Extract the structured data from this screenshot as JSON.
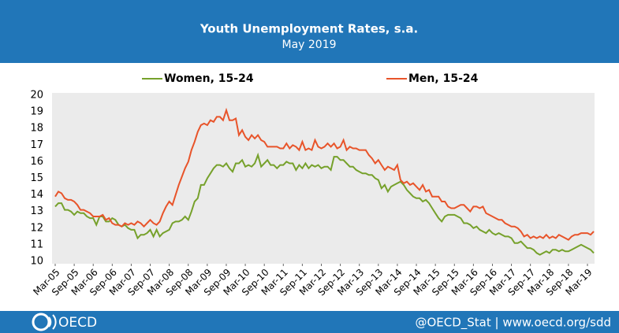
{
  "chart_data": {
    "type": "line",
    "title": "Youth Unemployment Rates, s.a.",
    "subtitle": "May 2019",
    "footer_logo": "OECD",
    "footer_text": "@OECD_Stat | www.oecd.org/sdd",
    "categories": [
      "Mar-05",
      null,
      null,
      null,
      null,
      null,
      "Sep-05",
      null,
      null,
      null,
      null,
      null,
      "Mar-06",
      null,
      null,
      null,
      null,
      null,
      "Sep-06",
      null,
      null,
      null,
      null,
      null,
      "Mar-07",
      null,
      null,
      null,
      null,
      null,
      "Sep-07",
      null,
      null,
      null,
      null,
      null,
      "Mar-08",
      null,
      null,
      null,
      null,
      null,
      "Sep-08",
      null,
      null,
      null,
      null,
      null,
      "Mar-09",
      null,
      null,
      null,
      null,
      null,
      "Sep-09",
      null,
      null,
      null,
      null,
      null,
      "Mar-10",
      null,
      null,
      null,
      null,
      null,
      "Sep-10",
      null,
      null,
      null,
      null,
      null,
      "Mar-11",
      null,
      null,
      null,
      null,
      null,
      "Sep-11",
      null,
      null,
      null,
      null,
      null,
      "Mar-12",
      null,
      null,
      null,
      null,
      null,
      "Sep-12",
      null,
      null,
      null,
      null,
      null,
      "Mar-13",
      null,
      null,
      null,
      null,
      null,
      "Sep-13",
      null,
      null,
      null,
      null,
      null,
      "Mar-14",
      null,
      null,
      null,
      null,
      null,
      "Sep-14",
      null,
      null,
      null,
      null,
      null,
      "Mar-15",
      null,
      null,
      null,
      null,
      null,
      "Sep-15",
      null,
      null,
      null,
      null,
      null,
      "Mar-16",
      null,
      null,
      null,
      null,
      null,
      "Sep-16",
      null,
      null,
      null,
      null,
      null,
      "Mar-17",
      null,
      null,
      null,
      null,
      null,
      "Sep-17",
      null,
      null,
      null,
      null,
      null,
      "Mar-18",
      null,
      null,
      null,
      null,
      null,
      "Sep-18",
      null,
      null,
      null,
      null,
      null,
      "Mar-19",
      null,
      null
    ],
    "series": [
      {
        "name": "Women, 15-24",
        "color": "#76a12b",
        "values": [
          13.3,
          13.5,
          13.5,
          13.1,
          13.1,
          13.0,
          12.8,
          13.0,
          12.9,
          12.9,
          12.7,
          12.6,
          12.6,
          12.2,
          12.7,
          12.7,
          12.4,
          12.4,
          12.6,
          12.5,
          12.2,
          12.1,
          12.2,
          12.0,
          11.9,
          11.9,
          11.4,
          11.6,
          11.6,
          11.7,
          11.9,
          11.5,
          11.9,
          11.5,
          11.7,
          11.8,
          11.9,
          12.3,
          12.4,
          12.4,
          12.5,
          12.7,
          12.5,
          13.0,
          13.6,
          13.8,
          14.6,
          14.6,
          15.0,
          15.3,
          15.6,
          15.8,
          15.8,
          15.7,
          15.9,
          15.6,
          15.4,
          15.9,
          15.9,
          16.1,
          15.7,
          15.8,
          15.7,
          15.9,
          16.4,
          15.7,
          15.9,
          16.1,
          15.8,
          15.8,
          15.6,
          15.8,
          15.8,
          16.0,
          15.9,
          15.9,
          15.5,
          15.8,
          15.6,
          15.9,
          15.6,
          15.8,
          15.7,
          15.8,
          15.6,
          15.7,
          15.7,
          15.5,
          16.3,
          16.3,
          16.1,
          16.1,
          15.9,
          15.7,
          15.7,
          15.5,
          15.4,
          15.3,
          15.3,
          15.2,
          15.2,
          15.0,
          14.9,
          14.4,
          14.6,
          14.2,
          14.5,
          14.6,
          14.7,
          14.8,
          14.6,
          14.3,
          14.1,
          13.9,
          13.8,
          13.8,
          13.6,
          13.7,
          13.5,
          13.2,
          12.9,
          12.6,
          12.4,
          12.7,
          12.8,
          12.8,
          12.8,
          12.7,
          12.6,
          12.3,
          12.3,
          12.2,
          12.0,
          12.1,
          11.9,
          11.8,
          11.7,
          11.9,
          11.7,
          11.6,
          11.7,
          11.6,
          11.5,
          11.5,
          11.4,
          11.1,
          11.1,
          11.2,
          11.0,
          10.8,
          10.8,
          10.7,
          10.5,
          10.4,
          10.5,
          10.6,
          10.5,
          10.7,
          10.7,
          10.6,
          10.7,
          10.6,
          10.6,
          10.7,
          10.8,
          10.9,
          11.0,
          10.9,
          10.8,
          10.7,
          10.5
        ]
      },
      {
        "name": "Men, 15-24",
        "color": "#e8542a",
        "values": [
          13.9,
          14.2,
          14.1,
          13.8,
          13.7,
          13.7,
          13.6,
          13.4,
          13.1,
          13.1,
          13.0,
          12.9,
          12.7,
          12.7,
          12.7,
          12.8,
          12.5,
          12.6,
          12.3,
          12.2,
          12.2,
          12.1,
          12.3,
          12.2,
          12.3,
          12.2,
          12.4,
          12.3,
          12.1,
          12.3,
          12.5,
          12.3,
          12.2,
          12.4,
          12.9,
          13.3,
          13.6,
          13.4,
          14.0,
          14.6,
          15.1,
          15.6,
          16.0,
          16.7,
          17.2,
          17.8,
          18.2,
          18.3,
          18.2,
          18.5,
          18.4,
          18.7,
          18.7,
          18.5,
          19.1,
          18.5,
          18.5,
          18.6,
          17.6,
          17.9,
          17.5,
          17.3,
          17.6,
          17.4,
          17.6,
          17.3,
          17.2,
          16.9,
          16.9,
          16.9,
          16.9,
          16.8,
          16.8,
          17.1,
          16.8,
          17.0,
          16.9,
          16.7,
          17.2,
          16.7,
          16.8,
          16.7,
          17.3,
          16.9,
          16.8,
          16.9,
          17.1,
          16.9,
          17.1,
          16.8,
          16.9,
          17.3,
          16.7,
          16.9,
          16.8,
          16.8,
          16.7,
          16.7,
          16.7,
          16.4,
          16.2,
          15.9,
          16.1,
          15.8,
          15.5,
          15.7,
          15.6,
          15.5,
          15.8,
          14.9,
          14.7,
          14.8,
          14.6,
          14.7,
          14.5,
          14.3,
          14.6,
          14.2,
          14.3,
          13.9,
          13.9,
          13.9,
          13.6,
          13.6,
          13.3,
          13.2,
          13.2,
          13.3,
          13.4,
          13.4,
          13.2,
          13.0,
          13.3,
          13.3,
          13.2,
          13.3,
          12.9,
          12.8,
          12.7,
          12.6,
          12.5,
          12.5,
          12.3,
          12.2,
          12.1,
          12.1,
          12.0,
          11.8,
          11.5,
          11.6,
          11.4,
          11.5,
          11.4,
          11.5,
          11.4,
          11.6,
          11.4,
          11.5,
          11.4,
          11.6,
          11.5,
          11.4,
          11.3,
          11.5,
          11.6,
          11.6,
          11.7,
          11.7,
          11.7,
          11.6,
          11.8
        ]
      }
    ],
    "ylim": [
      10,
      20
    ],
    "yticks": [
      10,
      11,
      12,
      13,
      14,
      15,
      16,
      17,
      18,
      19,
      20
    ],
    "grid": false,
    "legend": "top"
  }
}
